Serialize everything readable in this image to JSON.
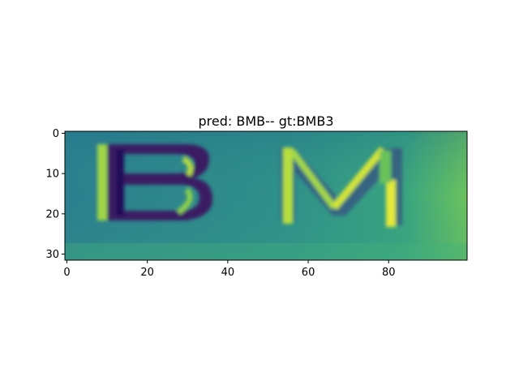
{
  "title": "pred: BMB-- gt:BMB3",
  "x_ticks": [
    "0",
    "20",
    "40",
    "60",
    "80"
  ],
  "y_ticks": [
    "0",
    "10",
    "20",
    "30"
  ],
  "x_tick_values": [
    0,
    20,
    40,
    60,
    80
  ],
  "y_tick_values": [
    0,
    10,
    20,
    30
  ],
  "image_extent": {
    "x": [
      -0.5,
      99.5
    ],
    "y": [
      31.5,
      -0.5
    ]
  },
  "image_content": {
    "visible_letters": "B M",
    "colormap": "viridis",
    "colors": {
      "background": "#2f8f8c",
      "dark": "#3b1f63",
      "bright": "#c9e03a",
      "right_edge": "#55b86a"
    }
  }
}
